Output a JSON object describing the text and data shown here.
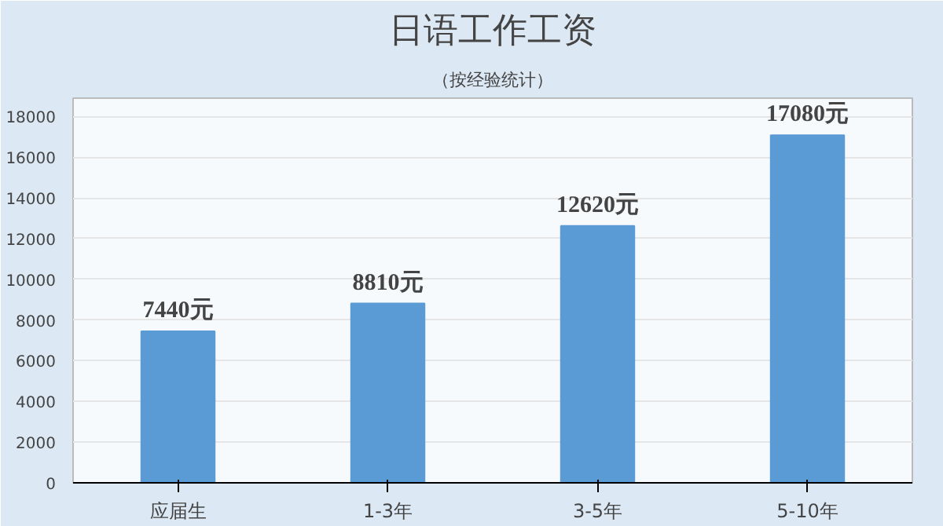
{
  "chart_data": {
    "type": "bar",
    "title": "日语工作工资",
    "subtitle": "（按经验统计）",
    "categories": [
      "应届生",
      "1-3年",
      "3-5年",
      "5-10年"
    ],
    "values": [
      7440,
      8810,
      12620,
      17080
    ],
    "value_labels": [
      "7440元",
      "8810元",
      "12620元",
      "17080元"
    ],
    "color": "#5b9bd5",
    "ylim": [
      0,
      18900
    ],
    "yticks": [
      0,
      2000,
      4000,
      6000,
      8000,
      10000,
      12000,
      14000,
      16000,
      18000
    ],
    "grid": "y"
  }
}
